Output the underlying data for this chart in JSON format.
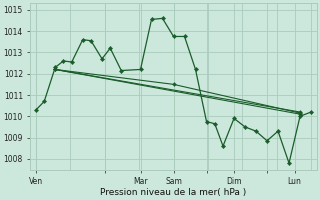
{
  "background_color": "#cce8dc",
  "grid_color": "#aaccbb",
  "line_color": "#1a5c2a",
  "marker_color": "#1a5c2a",
  "xlabel_text": "Pression niveau de la mer( hPa )",
  "ylim": [
    1007.5,
    1015.3
  ],
  "yticks": [
    1008,
    1009,
    1010,
    1011,
    1012,
    1013,
    1014,
    1015
  ],
  "day_labels": [
    "Ven",
    "",
    "Mar",
    "Sam",
    "",
    "Dim",
    "",
    "Lun"
  ],
  "day_x": [
    0.0,
    0.25,
    0.38,
    0.5,
    0.62,
    0.72,
    0.84,
    0.94
  ],
  "vline_x": [
    0.0,
    0.125,
    0.25,
    0.375,
    0.5,
    0.625,
    0.75,
    0.875,
    1.0
  ],
  "series": [
    {
      "x": [
        0.0,
        0.03,
        0.07,
        0.1,
        0.13,
        0.17,
        0.2,
        0.24,
        0.27,
        0.31,
        0.38,
        0.42,
        0.46,
        0.5,
        0.54,
        0.58,
        0.62,
        0.65,
        0.68,
        0.72,
        0.76,
        0.8,
        0.84,
        0.88,
        0.92,
        0.96,
        1.0
      ],
      "y": [
        1010.3,
        1010.7,
        1012.3,
        1012.6,
        1012.55,
        1013.6,
        1013.55,
        1012.7,
        1013.2,
        1012.15,
        1012.2,
        1014.55,
        1014.6,
        1013.75,
        1013.75,
        1012.2,
        1009.75,
        1009.65,
        1008.6,
        1009.9,
        1009.5,
        1009.3,
        1008.85,
        1009.3,
        1007.8,
        1010.0,
        1010.2
      ]
    },
    {
      "x": [
        0.07,
        0.96
      ],
      "y": [
        1012.2,
        1010.1
      ]
    },
    {
      "x": [
        0.07,
        0.96
      ],
      "y": [
        1012.2,
        1010.2
      ]
    },
    {
      "x": [
        0.07,
        0.5,
        0.96
      ],
      "y": [
        1012.2,
        1011.5,
        1010.15
      ]
    }
  ],
  "tick_label_fontsize": 5.5,
  "xlabel_fontsize": 6.5
}
